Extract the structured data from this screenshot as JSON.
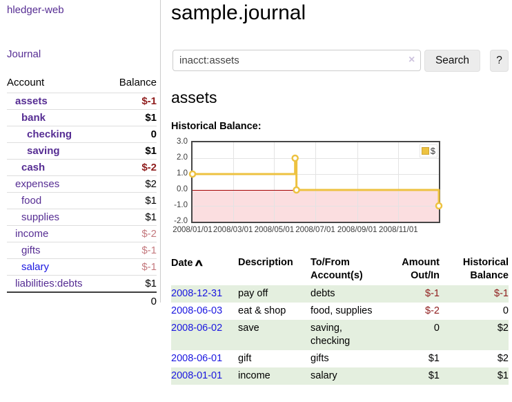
{
  "app": {
    "title": "hledger-web"
  },
  "sidebar": {
    "nav_journal": "Journal",
    "columns": {
      "account": "Account",
      "balance": "Balance"
    },
    "accounts": [
      {
        "account": "assets",
        "balance": "$-1",
        "indent": 1,
        "bold": true,
        "neg": "strong"
      },
      {
        "account": "bank",
        "balance": "$1",
        "indent": 2,
        "bold": true
      },
      {
        "account": "checking",
        "balance": "0",
        "indent": 3,
        "bold": true
      },
      {
        "account": "saving",
        "balance": "$1",
        "indent": 3,
        "bold": true
      },
      {
        "account": "cash",
        "balance": "$-2",
        "indent": 2,
        "bold": true,
        "neg": "strong"
      },
      {
        "account": "expenses",
        "balance": "$2",
        "indent": 1
      },
      {
        "account": "food",
        "balance": "$1",
        "indent": 2
      },
      {
        "account": "supplies",
        "balance": "$1",
        "indent": 2
      },
      {
        "account": "income",
        "balance": "$-2",
        "indent": 1,
        "neg": "muted"
      },
      {
        "account": "gifts",
        "balance": "$-1",
        "indent": 2,
        "neg": "muted"
      },
      {
        "account": "salary",
        "balance": "$-1",
        "indent": 2,
        "neg": "muted",
        "unvisited": true
      },
      {
        "account": "liabilities:debts",
        "balance": "$1",
        "indent": 1
      }
    ],
    "total": "0"
  },
  "main": {
    "title": "sample.journal",
    "search": {
      "value": "inacct:assets",
      "clear_icon": "×",
      "button_label": "Search",
      "help_label": "?"
    },
    "account_heading": "assets",
    "chart_heading": "Historical Balance:"
  },
  "chart_data": {
    "type": "line",
    "title": "Historical Balance:",
    "x_range": [
      "2008-01-01",
      "2008-12-31"
    ],
    "ylim": [
      -2.0,
      3.0
    ],
    "grid": true,
    "legend_position": "top-right",
    "y_ticks": [
      {
        "value": 3,
        "label": "3.0"
      },
      {
        "value": 2,
        "label": "2.0"
      },
      {
        "value": 1,
        "label": "1.0"
      },
      {
        "value": 0,
        "label": "0.0"
      },
      {
        "value": -1,
        "label": "-1.0"
      },
      {
        "value": -2,
        "label": "-2.0"
      }
    ],
    "x_ticks": [
      {
        "date": "2008-01-01",
        "label": "2008/01/01"
      },
      {
        "date": "2008-03-01",
        "label": "2008/03/01"
      },
      {
        "date": "2008-05-01",
        "label": "2008/05/01"
      },
      {
        "date": "2008-07-01",
        "label": "2008/07/01"
      },
      {
        "date": "2008-09-01",
        "label": "2008/09/01"
      },
      {
        "date": "2008-11-01",
        "label": "2008/11/01"
      }
    ],
    "series": [
      {
        "name": "$",
        "color": "#edc240",
        "step": true,
        "points": [
          [
            "2008-01-01",
            1.0
          ],
          [
            "2008-06-01",
            2.0
          ],
          [
            "2008-06-03",
            0.0
          ],
          [
            "2008-12-31",
            -1.0
          ]
        ]
      }
    ],
    "negative_region": {
      "from": 0,
      "to": -2,
      "color": "#fbdee0"
    },
    "zero_line_color": "#a40000"
  },
  "register": {
    "columns": [
      "Date",
      "Description",
      "To/From\nAccount(s)",
      "Amount\nOut/In",
      "Historical\nBalance"
    ],
    "sort_icon": "∧",
    "rows": [
      {
        "date": "2008-12-31",
        "description": "pay off",
        "accounts": "debts",
        "amount": "$-1",
        "amount_neg": true,
        "balance": "$-1",
        "balance_neg": true
      },
      {
        "date": "2008-06-03",
        "description": "eat & shop",
        "accounts": "food, supplies",
        "amount": "$-2",
        "amount_neg": true,
        "balance": "0",
        "balance_neg": false
      },
      {
        "date": "2008-06-02",
        "description": "save",
        "accounts": "saving,\nchecking",
        "amount": "0",
        "amount_neg": false,
        "balance": "$2",
        "balance_neg": false
      },
      {
        "date": "2008-06-01",
        "description": "gift",
        "accounts": "gifts",
        "amount": "$1",
        "amount_neg": false,
        "balance": "$2",
        "balance_neg": false
      },
      {
        "date": "2008-01-01",
        "description": "income",
        "accounts": "salary",
        "amount": "$1",
        "amount_neg": false,
        "balance": "$1",
        "balance_neg": false
      }
    ]
  },
  "colors": {
    "link_visited": "#562d93",
    "link_unvisited": "#1a16e0",
    "negative_strong": "#8f1d1d",
    "negative_muted": "#c4797e",
    "row_stripe": "#e4efdf",
    "chart_line": "#edc240",
    "chart_negative_bg": "#fbdee0",
    "chart_zero_line": "#a40000"
  }
}
